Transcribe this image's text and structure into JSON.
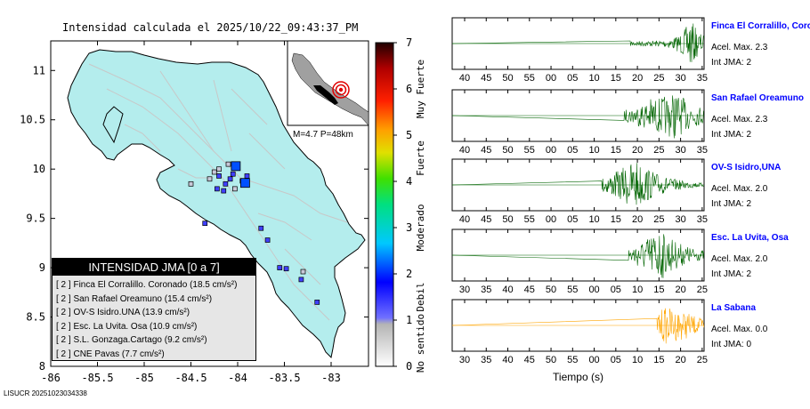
{
  "title": "Intensidad calculada el 2025/10/22_09:43:37_PM",
  "footer": "LISUCR 20251023034338",
  "inset": {
    "caption": "M=4.7 P=48km"
  },
  "legend": {
    "title": "INTENSIDAD JMA [0 a 7]",
    "items": [
      {
        "level": "[ 2 ]",
        "label": "Finca El Corralillo. Coronado (18.5 cm/s²)"
      },
      {
        "level": "[ 2 ]",
        "label": "San Rafael Oreamuno (15.4 cm/s²)"
      },
      {
        "level": "[ 2 ]",
        "label": "OV-S Isidro.UNA (13.9 cm/s²)"
      },
      {
        "level": "[ 2 ]",
        "label": "Esc. La Uvita. Osa (10.9 cm/s²)"
      },
      {
        "level": "[ 2 ]",
        "label": "S.L. Gonzaga.Cartago (9.2 cm/s²)"
      },
      {
        "level": "[ 2 ]",
        "label": "CNE Pavas (7.7 cm/s²)"
      }
    ]
  },
  "colorbar": {
    "ticks": [
      "0",
      "1",
      "2",
      "3",
      "4",
      "5",
      "6",
      "7"
    ],
    "categories": [
      "No sentido",
      "Debil",
      "Moderado",
      "Fuerte",
      "Muy Fuerte"
    ]
  },
  "stations": [
    {
      "name": "Finca El Corralillo, Coronado",
      "acel": "Acel. Max. 2.3",
      "jma": "Int JMA: 2",
      "ticks": [
        "40",
        "45",
        "50",
        "55",
        "00",
        "05",
        "10",
        "15",
        "20",
        "25",
        "30",
        "35"
      ],
      "color": "#006400"
    },
    {
      "name": "San Rafael Oreamuno",
      "acel": "Acel. Max. 2.3",
      "jma": "Int JMA: 2",
      "ticks": [
        "40",
        "45",
        "50",
        "55",
        "00",
        "05",
        "10",
        "15",
        "20",
        "25",
        "30",
        "35"
      ],
      "color": "#006400"
    },
    {
      "name": "OV-S Isidro,UNA",
      "acel": "Acel. Max. 2.0",
      "jma": "Int JMA: 2",
      "ticks": [
        "40",
        "45",
        "50",
        "55",
        "00",
        "05",
        "10",
        "15",
        "20",
        "25",
        "30",
        "35"
      ],
      "color": "#006400"
    },
    {
      "name": "Esc. La Uvita, Osa",
      "acel": "Acel. Max. 2.0",
      "jma": "Int JMA: 2",
      "ticks": [
        "30",
        "35",
        "40",
        "45",
        "50",
        "55",
        "00",
        "05",
        "10",
        "15",
        "20",
        "25"
      ],
      "color": "#006400"
    },
    {
      "name": "La Sabana",
      "acel": "Acel. Max. 0.0",
      "jma": "Int JMA: 0",
      "ticks": [
        "30",
        "35",
        "40",
        "45",
        "50",
        "55",
        "00",
        "05",
        "10",
        "15",
        "20",
        "25"
      ],
      "color": "#ffa500"
    }
  ],
  "xlabel": "Tiempo (s)",
  "chart_data": [
    {
      "type": "scatter",
      "title": "Intensidad calculada el 2025/10/22_09:43:37_PM",
      "xlim": [
        -86,
        -82.6
      ],
      "ylim": [
        8,
        11.3
      ],
      "xticks": [
        "-86",
        "-85.5",
        "-85",
        "-84.5",
        "-84",
        "-83.5",
        "-83"
      ],
      "yticks": [
        "8",
        "8.5",
        "9",
        "9.5",
        "10",
        "10.5",
        "11"
      ],
      "epicenter": {
        "x": -83.72,
        "y": 9.87,
        "magnitude": "M=4.7",
        "depth": "P=48km"
      },
      "stations_high": [
        {
          "x": -84.02,
          "y": 10.03,
          "intensity": 2
        },
        {
          "x": -83.92,
          "y": 9.86,
          "intensity": 2
        }
      ],
      "stations_low": [
        {
          "x": -84.2,
          "y": 9.93,
          "intensity": 2
        },
        {
          "x": -84.13,
          "y": 9.85,
          "intensity": 2
        },
        {
          "x": -84.22,
          "y": 9.8,
          "intensity": 2
        },
        {
          "x": -84.08,
          "y": 9.9,
          "intensity": 2
        },
        {
          "x": -84.3,
          "y": 9.9,
          "intensity": 1
        },
        {
          "x": -84.1,
          "y": 10.05,
          "intensity": 1
        },
        {
          "x": -84.2,
          "y": 10.0,
          "intensity": 1
        },
        {
          "x": -84.05,
          "y": 9.95,
          "intensity": 2
        },
        {
          "x": -83.9,
          "y": 9.93,
          "intensity": 2
        },
        {
          "x": -84.15,
          "y": 9.78,
          "intensity": 2
        },
        {
          "x": -84.35,
          "y": 9.45,
          "intensity": 2
        },
        {
          "x": -83.75,
          "y": 9.4,
          "intensity": 2
        },
        {
          "x": -83.68,
          "y": 9.28,
          "intensity": 2
        },
        {
          "x": -83.55,
          "y": 9.0,
          "intensity": 2
        },
        {
          "x": -83.48,
          "y": 8.99,
          "intensity": 2
        },
        {
          "x": -83.3,
          "y": 8.96,
          "intensity": 1
        },
        {
          "x": -83.32,
          "y": 8.88,
          "intensity": 2
        },
        {
          "x": -83.95,
          "y": 9.88,
          "intensity": 2
        },
        {
          "x": -83.15,
          "y": 8.65,
          "intensity": 2
        },
        {
          "x": -84.5,
          "y": 9.85,
          "intensity": 1
        },
        {
          "x": -84.03,
          "y": 9.8,
          "intensity": 1
        },
        {
          "x": -84.25,
          "y": 9.97,
          "intensity": 1
        }
      ]
    },
    {
      "type": "line",
      "xlabel": "Tiempo (s)",
      "series": [
        {
          "name": "Finca El Corralillo, Coronado",
          "onset": 20,
          "peak": 2.3,
          "intensity": 2
        },
        {
          "name": "San Rafael Oreamuno",
          "onset": 18,
          "peak": 2.3,
          "intensity": 2
        },
        {
          "name": "OV-S Isidro,UNA",
          "onset": 11,
          "peak": 2.0,
          "intensity": 2
        },
        {
          "name": "Esc. La Uvita, Osa",
          "onset": 11,
          "peak": 2.0,
          "intensity": 2
        },
        {
          "name": "La Sabana",
          "onset": 19,
          "peak": 0.0,
          "intensity": 0
        }
      ]
    }
  ]
}
